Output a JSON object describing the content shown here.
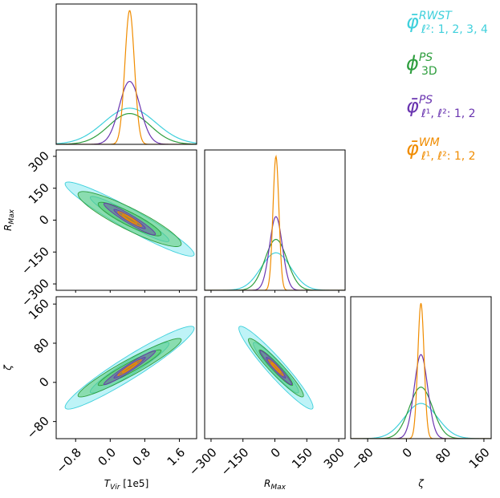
{
  "chart_data": {
    "type": "corner",
    "parameters": [
      {
        "key": "tvir",
        "label_main": "T",
        "label_sub": "Vir",
        "label_suffix": " [1e5]",
        "range": [
          -1.25,
          2.0
        ],
        "ticks": [
          -0.8,
          0.0,
          0.8,
          1.6
        ],
        "tick_labels": [
          "−0.8",
          "0.0",
          "0.8",
          "1.6"
        ]
      },
      {
        "key": "rmax",
        "label_main": "R",
        "label_sub": "Max",
        "label_suffix": "",
        "range": [
          -330,
          330
        ],
        "ticks": [
          -300,
          -150,
          0,
          150,
          300
        ],
        "tick_labels": [
          "−300",
          "−150",
          "0",
          "150",
          "300"
        ]
      },
      {
        "key": "zeta",
        "label_main": "ζ",
        "label_sub": "",
        "label_suffix": "",
        "range": [
          -115,
          175
        ],
        "ticks": [
          -80,
          0,
          80,
          160
        ],
        "tick_labels": [
          "−80",
          "0",
          "80",
          "160"
        ]
      }
    ],
    "means": [
      0.45,
      5,
      30
    ],
    "series": [
      {
        "name": "RWST",
        "legend_main": "φ̄",
        "legend_sup": "RWST",
        "legend_sub": "ℓ²: 1, 2, 3, 4",
        "color": "#3fd0dc",
        "fill": "#7ee8f0",
        "sigma": [
          0.6,
          70,
          34
        ],
        "corr": [
          -0.95,
          0.95,
          -0.95
        ]
      },
      {
        "name": "PS 3D",
        "legend_main": "ϕ",
        "legend_sup": "PS",
        "legend_sub": "3D",
        "color": "#2e9e3e",
        "fill": "#56c76a",
        "sigma": [
          0.48,
          52,
          24
        ],
        "corr": [
          -0.9,
          0.95,
          -0.95
        ]
      },
      {
        "name": "PS",
        "legend_main": "φ̄",
        "legend_sup": "PS",
        "legend_sub": "ℓ¹, ℓ²: 1, 2",
        "color": "#6a35b0",
        "fill": "#6a5aa8",
        "sigma": [
          0.24,
          30,
          14
        ],
        "corr": [
          -0.95,
          0.97,
          -0.97
        ]
      },
      {
        "name": "WM",
        "legend_main": "φ̄",
        "legend_sup": "WM",
        "legend_sub": "ℓ¹, ℓ²: 1, 2",
        "color": "#f08c00",
        "fill": "#b58a1c",
        "sigma": [
          0.11,
          14,
          6.5
        ],
        "corr": [
          -0.95,
          0.97,
          -0.97
        ]
      }
    ],
    "contour_levels_sigma": [
      1,
      2
    ],
    "diagonal_peak_heights": [
      [
        0.27,
        0.23,
        0.47,
        1.0
      ],
      [
        0.28,
        0.38,
        0.55,
        1.0
      ],
      [
        0.26,
        0.38,
        0.62,
        1.0
      ]
    ]
  }
}
